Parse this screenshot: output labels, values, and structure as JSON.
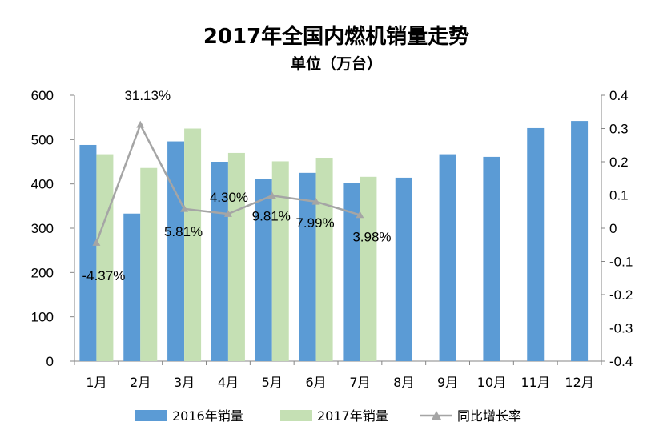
{
  "chart_data": {
    "type": "bar",
    "title": "2017年全国内燃机销量走势",
    "subtitle": "单位（万台）",
    "categories": [
      "1月",
      "2月",
      "3月",
      "4月",
      "5月",
      "6月",
      "7月",
      "8月",
      "9月",
      "10月",
      "11月",
      "12月"
    ],
    "series": [
      {
        "name": "2016年销量",
        "type": "bar",
        "axis": "left",
        "color": "#5B9BD5",
        "values": [
          488,
          333,
          496,
          450,
          411,
          425,
          402,
          414,
          467,
          461,
          526,
          542
        ]
      },
      {
        "name": "2017年销量",
        "type": "bar",
        "axis": "left",
        "color": "#C5E0B4",
        "values": [
          467,
          436,
          525,
          470,
          451,
          459,
          416,
          null,
          null,
          null,
          null,
          null
        ]
      },
      {
        "name": "同比增长率",
        "type": "line",
        "axis": "right",
        "color": "#A5A5A5",
        "marker": "triangle",
        "values": [
          -0.0437,
          0.3113,
          0.0581,
          0.043,
          0.0981,
          0.0799,
          0.0398,
          null,
          null,
          null,
          null,
          null
        ],
        "labels": [
          "-4.37%",
          "31.13%",
          "5.81%",
          "4.30%",
          "9.81%",
          "7.99%",
          "3.98%",
          null,
          null,
          null,
          null,
          null
        ]
      }
    ],
    "y_left": {
      "min": 0,
      "max": 600,
      "ticks": [
        "0",
        "100",
        "200",
        "300",
        "400",
        "500",
        "600"
      ]
    },
    "y_right": {
      "min": -0.4,
      "max": 0.4,
      "ticks": [
        "-0.4",
        "-0.3",
        "-0.2",
        "-0.1",
        "0",
        "0.1",
        "0.2",
        "0.3",
        "0.4"
      ]
    },
    "grid": false,
    "legend_position": "bottom"
  }
}
